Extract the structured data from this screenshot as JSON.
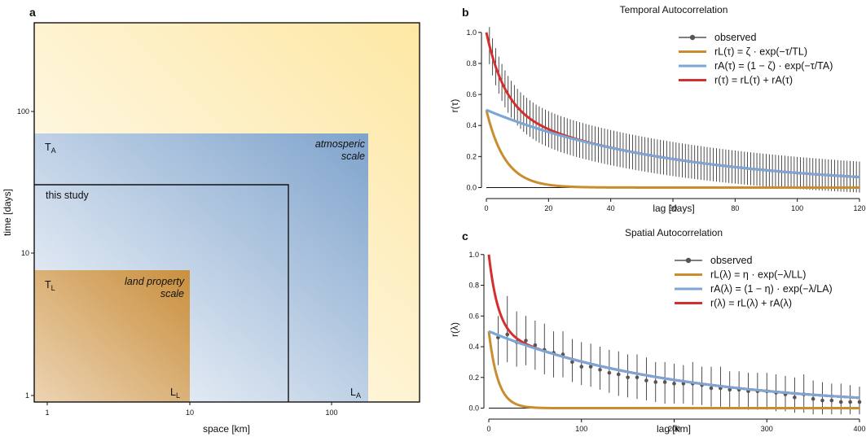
{
  "chart_data": [
    {
      "panel": "a",
      "type": "diagram",
      "xlabel": "space [km]",
      "ylabel": "time [days]",
      "x_scale": "log",
      "y_scale": "log",
      "x_ticks": [
        "1",
        "10",
        "100"
      ],
      "y_ticks": [
        "1",
        "10",
        "100"
      ],
      "regions": {
        "atmospheric": {
          "label": "atmosperic\nscale",
          "corner_x": "L_A",
          "corner_y": "T_A",
          "color": "#7fa3cc"
        },
        "land": {
          "label": "land property\nscale",
          "corner_x": "L_L",
          "corner_y": "T_L",
          "color": "#c98f3e"
        },
        "study": {
          "label": "this study"
        },
        "background_color": "#fde7a3"
      },
      "extent": {
        "space_km": [
          1,
          500
        ],
        "time_days": [
          1,
          400
        ]
      },
      "atmospheric_extent": {
        "space_km": 180,
        "time_days": 70
      },
      "land_extent": {
        "space_km": 10,
        "time_days": 7.5
      },
      "study_extent": {
        "space_km": 52,
        "time_days": 30
      }
    },
    {
      "panel": "b",
      "type": "line",
      "title": "Temporal Autocorrelation",
      "xlabel": "lag [days]",
      "ylabel": "r(τ)",
      "xlim": [
        0,
        120
      ],
      "ylim": [
        -0.05,
        1.02
      ],
      "x_ticks": [
        0,
        20,
        40,
        60,
        80,
        100,
        120
      ],
      "y_ticks": [
        "0.0",
        "0.2",
        "0.4",
        "0.6",
        "0.8",
        "1.0"
      ],
      "model": {
        "zeta": 0.5,
        "T_L": 6,
        "T_A": 60
      },
      "observed_errbar_halfwidth": {
        "at0": 0.12,
        "at120": 0.1
      },
      "legend": [
        {
          "type": "observed",
          "label": "observed",
          "color": "#555555"
        },
        {
          "type": "rL",
          "label": "rL(τ) = ζ · exp(−τ/TL)",
          "color": "#c98d2e"
        },
        {
          "type": "rA",
          "label": "rA(τ) = (1 − ζ) · exp(−τ/TA)",
          "color": "#7ba7d6"
        },
        {
          "type": "r",
          "label": "r(τ) = rL(τ) + rA(τ)",
          "color": "#d32f2f"
        }
      ]
    },
    {
      "panel": "c",
      "type": "line",
      "title": "Spatial Autocorrelation",
      "xlabel": "lag [km]",
      "ylabel": "r(λ)",
      "xlim": [
        0,
        400
      ],
      "ylim": [
        -0.05,
        1.02
      ],
      "x_ticks": [
        0,
        100,
        200,
        300,
        400
      ],
      "y_ticks": [
        "0.0",
        "0.2",
        "0.4",
        "0.6",
        "0.8",
        "1.0"
      ],
      "model": {
        "eta": 0.5,
        "L_L": 10,
        "L_A": 200
      },
      "observed": [
        {
          "x": 10,
          "y": 0.46,
          "lo": 0.28,
          "hi": 0.6
        },
        {
          "x": 20,
          "y": 0.48,
          "lo": 0.3,
          "hi": 0.73
        },
        {
          "x": 30,
          "y": 0.43,
          "lo": 0.27,
          "hi": 0.63
        },
        {
          "x": 40,
          "y": 0.44,
          "lo": 0.28,
          "hi": 0.6
        },
        {
          "x": 50,
          "y": 0.41,
          "lo": 0.25,
          "hi": 0.57
        },
        {
          "x": 60,
          "y": 0.38,
          "lo": 0.22,
          "hi": 0.55
        },
        {
          "x": 70,
          "y": 0.36,
          "lo": 0.2,
          "hi": 0.5
        },
        {
          "x": 80,
          "y": 0.35,
          "lo": 0.2,
          "hi": 0.5
        },
        {
          "x": 90,
          "y": 0.3,
          "lo": 0.17,
          "hi": 0.45
        },
        {
          "x": 100,
          "y": 0.27,
          "lo": 0.15,
          "hi": 0.43
        },
        {
          "x": 110,
          "y": 0.27,
          "lo": 0.14,
          "hi": 0.42
        },
        {
          "x": 120,
          "y": 0.25,
          "lo": 0.12,
          "hi": 0.4
        },
        {
          "x": 130,
          "y": 0.23,
          "lo": 0.1,
          "hi": 0.38
        },
        {
          "x": 140,
          "y": 0.22,
          "lo": 0.08,
          "hi": 0.37
        },
        {
          "x": 150,
          "y": 0.2,
          "lo": 0.07,
          "hi": 0.35
        },
        {
          "x": 160,
          "y": 0.2,
          "lo": 0.06,
          "hi": 0.35
        },
        {
          "x": 170,
          "y": 0.18,
          "lo": 0.05,
          "hi": 0.33
        },
        {
          "x": 180,
          "y": 0.17,
          "lo": 0.04,
          "hi": 0.3
        },
        {
          "x": 190,
          "y": 0.17,
          "lo": 0.03,
          "hi": 0.3
        },
        {
          "x": 200,
          "y": 0.16,
          "lo": 0.03,
          "hi": 0.29
        },
        {
          "x": 210,
          "y": 0.16,
          "lo": 0.03,
          "hi": 0.28
        },
        {
          "x": 220,
          "y": 0.16,
          "lo": 0.02,
          "hi": 0.3
        },
        {
          "x": 230,
          "y": 0.15,
          "lo": 0.02,
          "hi": 0.27
        },
        {
          "x": 240,
          "y": 0.13,
          "lo": 0.01,
          "hi": 0.27
        },
        {
          "x": 250,
          "y": 0.13,
          "lo": 0.01,
          "hi": 0.27
        },
        {
          "x": 260,
          "y": 0.12,
          "lo": 0.0,
          "hi": 0.24
        },
        {
          "x": 270,
          "y": 0.12,
          "lo": 0.0,
          "hi": 0.24
        },
        {
          "x": 280,
          "y": 0.11,
          "lo": -0.01,
          "hi": 0.23
        },
        {
          "x": 290,
          "y": 0.11,
          "lo": -0.01,
          "hi": 0.23
        },
        {
          "x": 300,
          "y": 0.11,
          "lo": -0.01,
          "hi": 0.23
        },
        {
          "x": 310,
          "y": 0.1,
          "lo": -0.02,
          "hi": 0.22
        },
        {
          "x": 320,
          "y": 0.09,
          "lo": -0.02,
          "hi": 0.21
        },
        {
          "x": 330,
          "y": 0.07,
          "lo": -0.03,
          "hi": 0.2
        },
        {
          "x": 340,
          "y": 0.09,
          "lo": -0.03,
          "hi": 0.22
        },
        {
          "x": 350,
          "y": 0.06,
          "lo": -0.04,
          "hi": 0.18
        },
        {
          "x": 360,
          "y": 0.05,
          "lo": -0.04,
          "hi": 0.17
        },
        {
          "x": 370,
          "y": 0.05,
          "lo": -0.04,
          "hi": 0.16
        },
        {
          "x": 380,
          "y": 0.04,
          "lo": -0.04,
          "hi": 0.16
        },
        {
          "x": 390,
          "y": 0.04,
          "lo": -0.04,
          "hi": 0.15
        },
        {
          "x": 400,
          "y": 0.04,
          "lo": -0.04,
          "hi": 0.14
        }
      ],
      "legend": [
        {
          "type": "observed",
          "label": "observed",
          "color": "#555555"
        },
        {
          "type": "rL",
          "label": "rL(λ) = η · exp(−λ/LL)",
          "color": "#c98d2e"
        },
        {
          "type": "rA",
          "label": "rA(λ) = (1 − η) · exp(−λ/LA)",
          "color": "#7ba7d6"
        },
        {
          "type": "r",
          "label": "r(λ) = rL(λ) + rA(λ)",
          "color": "#d32f2f"
        }
      ]
    }
  ],
  "panel_letters": [
    "a",
    "b",
    "c"
  ]
}
